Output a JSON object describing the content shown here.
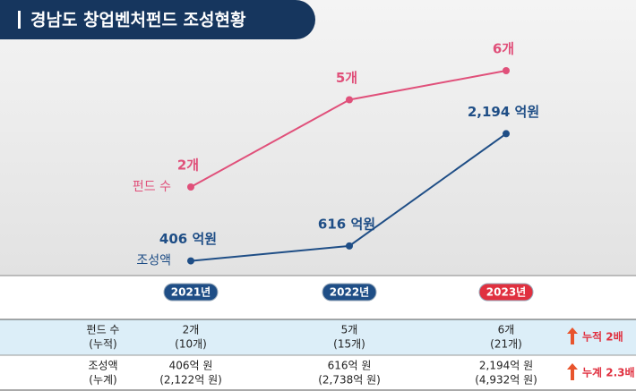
{
  "chart_data": {
    "type": "line",
    "title": "경남도 창업벤처펀드 조성현황",
    "categories": [
      "2021년",
      "2022년",
      "2023년"
    ],
    "category_colors": [
      "#1f4e86",
      "#1f4e86",
      "#e0303f"
    ],
    "ylim": [
      -0.8,
      7.2
    ],
    "y2lim": [
      300,
      3570
    ],
    "series": [
      {
        "name": "펀드 수",
        "color": "#e0507a",
        "values": [
          2,
          5,
          6
        ],
        "value_labels": [
          "2개",
          "5개",
          "6개"
        ]
      },
      {
        "name": "조성액",
        "color": "#1f4e86",
        "axis": "y2",
        "values": [
          406,
          616,
          2194
        ],
        "value_labels": [
          "406 억원",
          "616 억원",
          "2,194 억원"
        ]
      }
    ]
  },
  "table": {
    "rows": [
      {
        "label": [
          "펀드 수",
          "(누적)"
        ],
        "cells": [
          [
            "2개",
            "(10개)"
          ],
          [
            "5개",
            "(15개)"
          ],
          [
            "6개",
            "(21개)"
          ]
        ],
        "note": "누적 2배"
      },
      {
        "label": [
          "조성액",
          "(누계)"
        ],
        "cells": [
          [
            "406억 원",
            "(2,122억 원)"
          ],
          [
            "616억 원",
            "(2,738억 원)"
          ],
          [
            "2,194억 원",
            "(4,932억 원)"
          ]
        ],
        "note": "누계 2.3배"
      }
    ]
  }
}
